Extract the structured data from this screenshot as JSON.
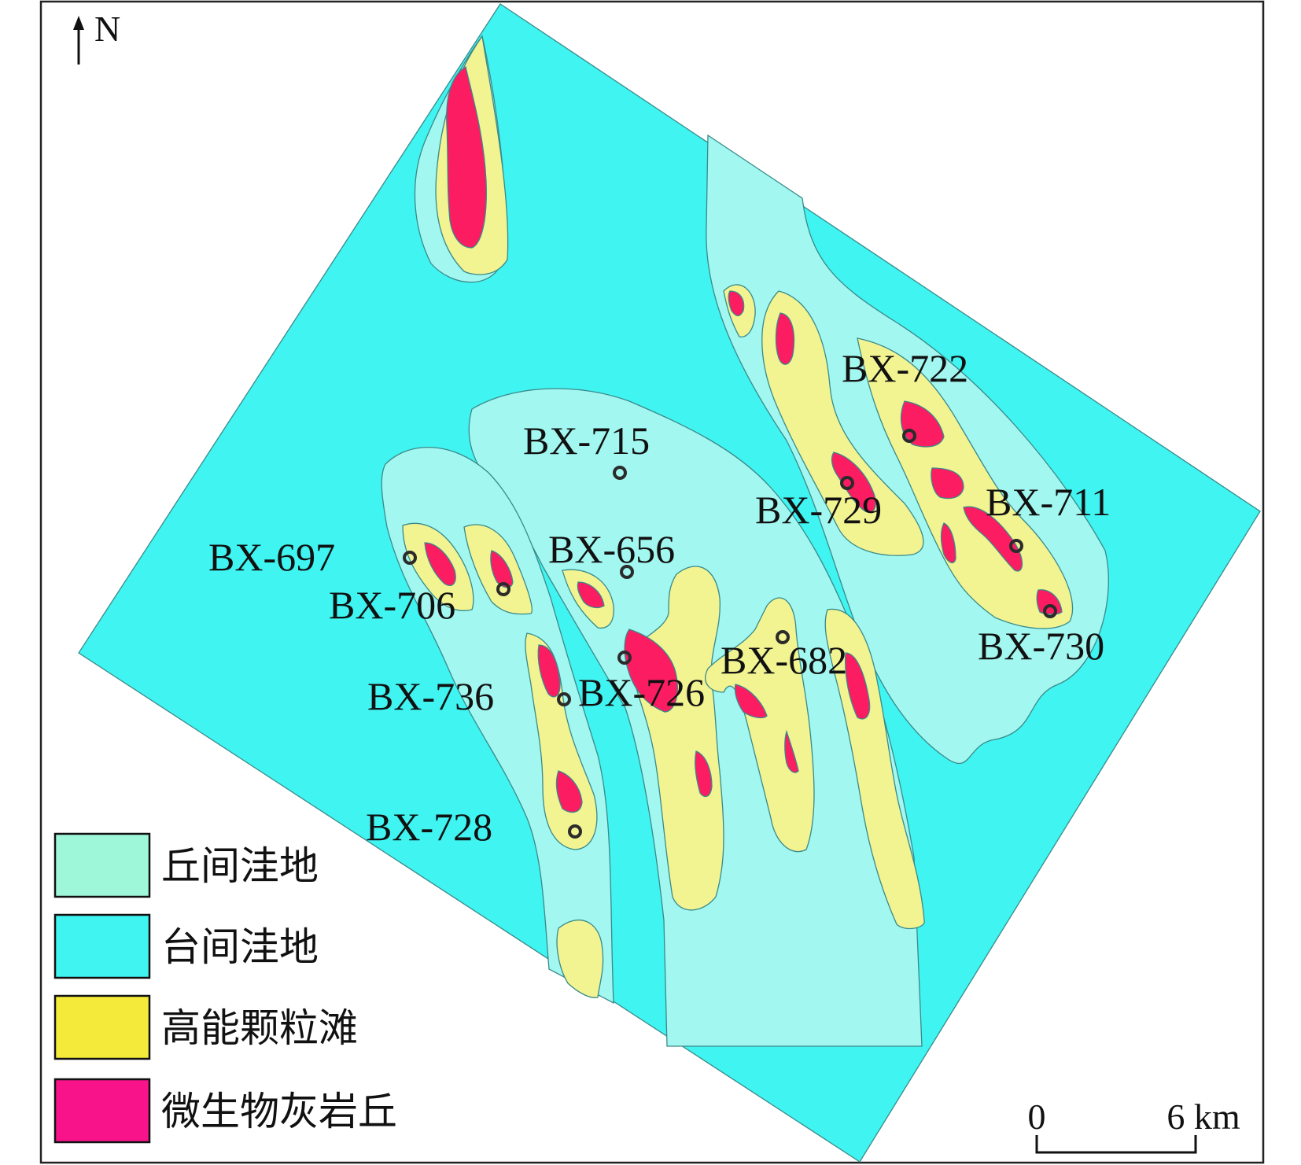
{
  "map": {
    "north_label": "N",
    "colors": {
      "inter_mound_depression": "#a2f7f0",
      "inter_platform_depression": "#3ff4f1",
      "high_energy_grain_shoal": "#f2f391",
      "microbial_limestone_mound": "#fb1c62",
      "outline": "#3a8a8a"
    },
    "wells": [
      {
        "label": "BX-722"
      },
      {
        "label": "BX-715"
      },
      {
        "label": "BX-729"
      },
      {
        "label": "BX-711"
      },
      {
        "label": "BX-697"
      },
      {
        "label": "BX-656"
      },
      {
        "label": "BX-706"
      },
      {
        "label": "BX-730"
      },
      {
        "label": "BX-682"
      },
      {
        "label": "BX-736"
      },
      {
        "label": "BX-726"
      },
      {
        "label": "BX-728"
      }
    ],
    "legend": {
      "items": [
        {
          "label": "丘间洼地",
          "color": "#9ff7da"
        },
        {
          "label": "台间洼地",
          "color": "#3ff4f1"
        },
        {
          "label": "高能颗粒滩",
          "color": "#f4ea3a"
        },
        {
          "label": "微生物灰岩丘",
          "color": "#f8138a"
        }
      ]
    },
    "scale_bar": {
      "start_label": "0",
      "end_label": "6 km"
    }
  }
}
